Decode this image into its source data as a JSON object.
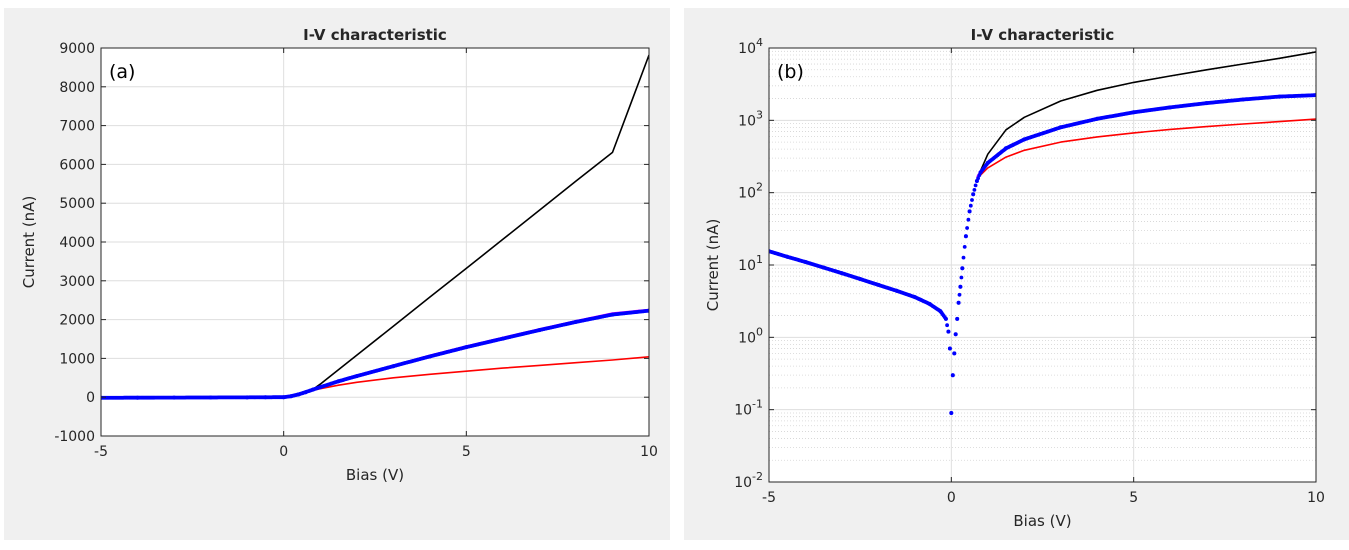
{
  "panels": [
    {
      "label": "(a)",
      "chart_data": {
        "type": "line",
        "title": "I-V characteristic",
        "xlabel": "Bias (V)",
        "ylabel": "Current (nA)",
        "yscale": "linear",
        "xlim": [
          -5,
          10
        ],
        "ylim": [
          -1000,
          9000
        ],
        "xticks": [
          -5,
          0,
          5,
          10
        ],
        "yticks": [
          -1000,
          0,
          1000,
          2000,
          3000,
          4000,
          5000,
          6000,
          7000,
          8000,
          9000
        ],
        "grid": true,
        "series": [
          {
            "name": "black",
            "color": "#000000",
            "style": "line",
            "x": [
              -5,
              -1,
              0,
              0.2,
              0.4,
              0.6,
              0.8,
              1,
              2,
              3,
              4,
              5,
              6,
              7,
              8,
              9,
              10
            ],
            "y": [
              0,
              0,
              5,
              25,
              70,
              130,
              200,
              335,
              1080,
              1830,
              2580,
              3320,
              4070,
              4820,
              5570,
              6310,
              8820
            ]
          },
          {
            "name": "red",
            "color": "#ff0000",
            "style": "line",
            "x": [
              -5,
              -1,
              0,
              0.2,
              0.4,
              0.6,
              0.8,
              1,
              1.5,
              2,
              3,
              4,
              5,
              6,
              7,
              8,
              9,
              10
            ],
            "y": [
              0,
              0,
              5,
              25,
              70,
              125,
              175,
              220,
              310,
              385,
              500,
              590,
              670,
              750,
              820,
              890,
              960,
              1040
            ]
          },
          {
            "name": "magenta",
            "color": "#ff00ff",
            "style": "line",
            "x": [
              -5,
              -1,
              0,
              0.2,
              0.4,
              0.6,
              0.8,
              1,
              1.5,
              2,
              3,
              4,
              5,
              6,
              7,
              8,
              9,
              10
            ],
            "y": [
              0,
              0,
              5,
              25,
              72,
              135,
              200,
              265,
              420,
              560,
              820,
              1080,
              1320,
              1540,
              1760,
              1970,
              2170,
              2260
            ]
          },
          {
            "name": "blue",
            "color": "#0000ff",
            "style": "markers",
            "x": [
              -5,
              -4,
              -3,
              -2,
              -1,
              -0.5,
              0,
              0.2,
              0.4,
              0.6,
              0.8,
              1,
              1.5,
              2,
              3,
              4,
              5,
              6,
              7,
              8,
              9,
              10
            ],
            "y": [
              -16,
              -13,
              -10,
              -7,
              -4,
              -2,
              0,
              25,
              70,
              130,
              195,
              258,
              410,
              545,
              800,
              1050,
              1290,
              1510,
              1730,
              1940,
              2130,
              2230
            ]
          }
        ]
      }
    },
    {
      "label": "(b)",
      "chart_data": {
        "type": "line",
        "title": "I-V characteristic",
        "xlabel": "Bias (V)",
        "ylabel": "Current (nA)",
        "yscale": "log",
        "xlim": [
          -5,
          10
        ],
        "ylim": [
          0.01,
          10000
        ],
        "xticks": [
          -5,
          0,
          5,
          10
        ],
        "ytick_bases": [
          "10",
          "10",
          "10",
          "10",
          "10",
          "10",
          "10"
        ],
        "ytick_exps": [
          "-2",
          "-1",
          "0",
          "1",
          "2",
          "3",
          "4"
        ],
        "grid": true,
        "series": [
          {
            "name": "black",
            "color": "#000000",
            "style": "line",
            "x": [
              0.8,
              1,
              1.5,
              2,
              3,
              4,
              5,
              6,
              7,
              8,
              9,
              10
            ],
            "y": [
              200,
              340,
              740,
              1100,
              1850,
              2600,
              3350,
              4100,
              5000,
              6000,
              7200,
              8820
            ]
          },
          {
            "name": "red",
            "color": "#ff0000",
            "style": "line",
            "x": [
              0.8,
              1,
              1.5,
              2,
              3,
              4,
              5,
              6,
              7,
              8,
              9,
              10
            ],
            "y": [
              175,
              220,
              310,
              385,
              500,
              590,
              670,
              750,
              820,
              890,
              960,
              1040
            ]
          },
          {
            "name": "magenta",
            "color": "#ff00ff",
            "style": "line",
            "x": [
              0.7,
              0.8,
              1,
              1.5,
              2,
              3,
              4,
              5,
              6,
              7,
              8,
              9,
              10
            ],
            "y": [
              165,
              200,
              265,
              420,
              560,
              820,
              1080,
              1320,
              1540,
              1760,
              1970,
              2170,
              2280
            ]
          },
          {
            "name": "blue",
            "color": "#0000ff",
            "style": "markers",
            "x": [
              -5,
              -4.5,
              -4,
              -3.5,
              -3,
              -2.5,
              -2,
              -1.5,
              -1,
              -0.6,
              -0.3,
              -0.15,
              -0.08,
              -0.04,
              0,
              0.04,
              0.08,
              0.12,
              0.16,
              0.2,
              0.25,
              0.3,
              0.4,
              0.5,
              0.6,
              0.7,
              0.8,
              1,
              1.5,
              2,
              3,
              4,
              5,
              6,
              7,
              8,
              9,
              10
            ],
            "y": [
              15.5,
              13,
              11,
              9.2,
              7.7,
              6.4,
              5.3,
              4.4,
              3.6,
              2.9,
              2.3,
              1.8,
              1.2,
              0.7,
              0.09,
              0.3,
              0.6,
              1.1,
              1.8,
              3,
              5,
              9,
              25,
              55,
              95,
              145,
              190,
              258,
              410,
              545,
              800,
              1050,
              1290,
              1510,
              1730,
              1940,
              2130,
              2230
            ]
          }
        ]
      }
    }
  ]
}
